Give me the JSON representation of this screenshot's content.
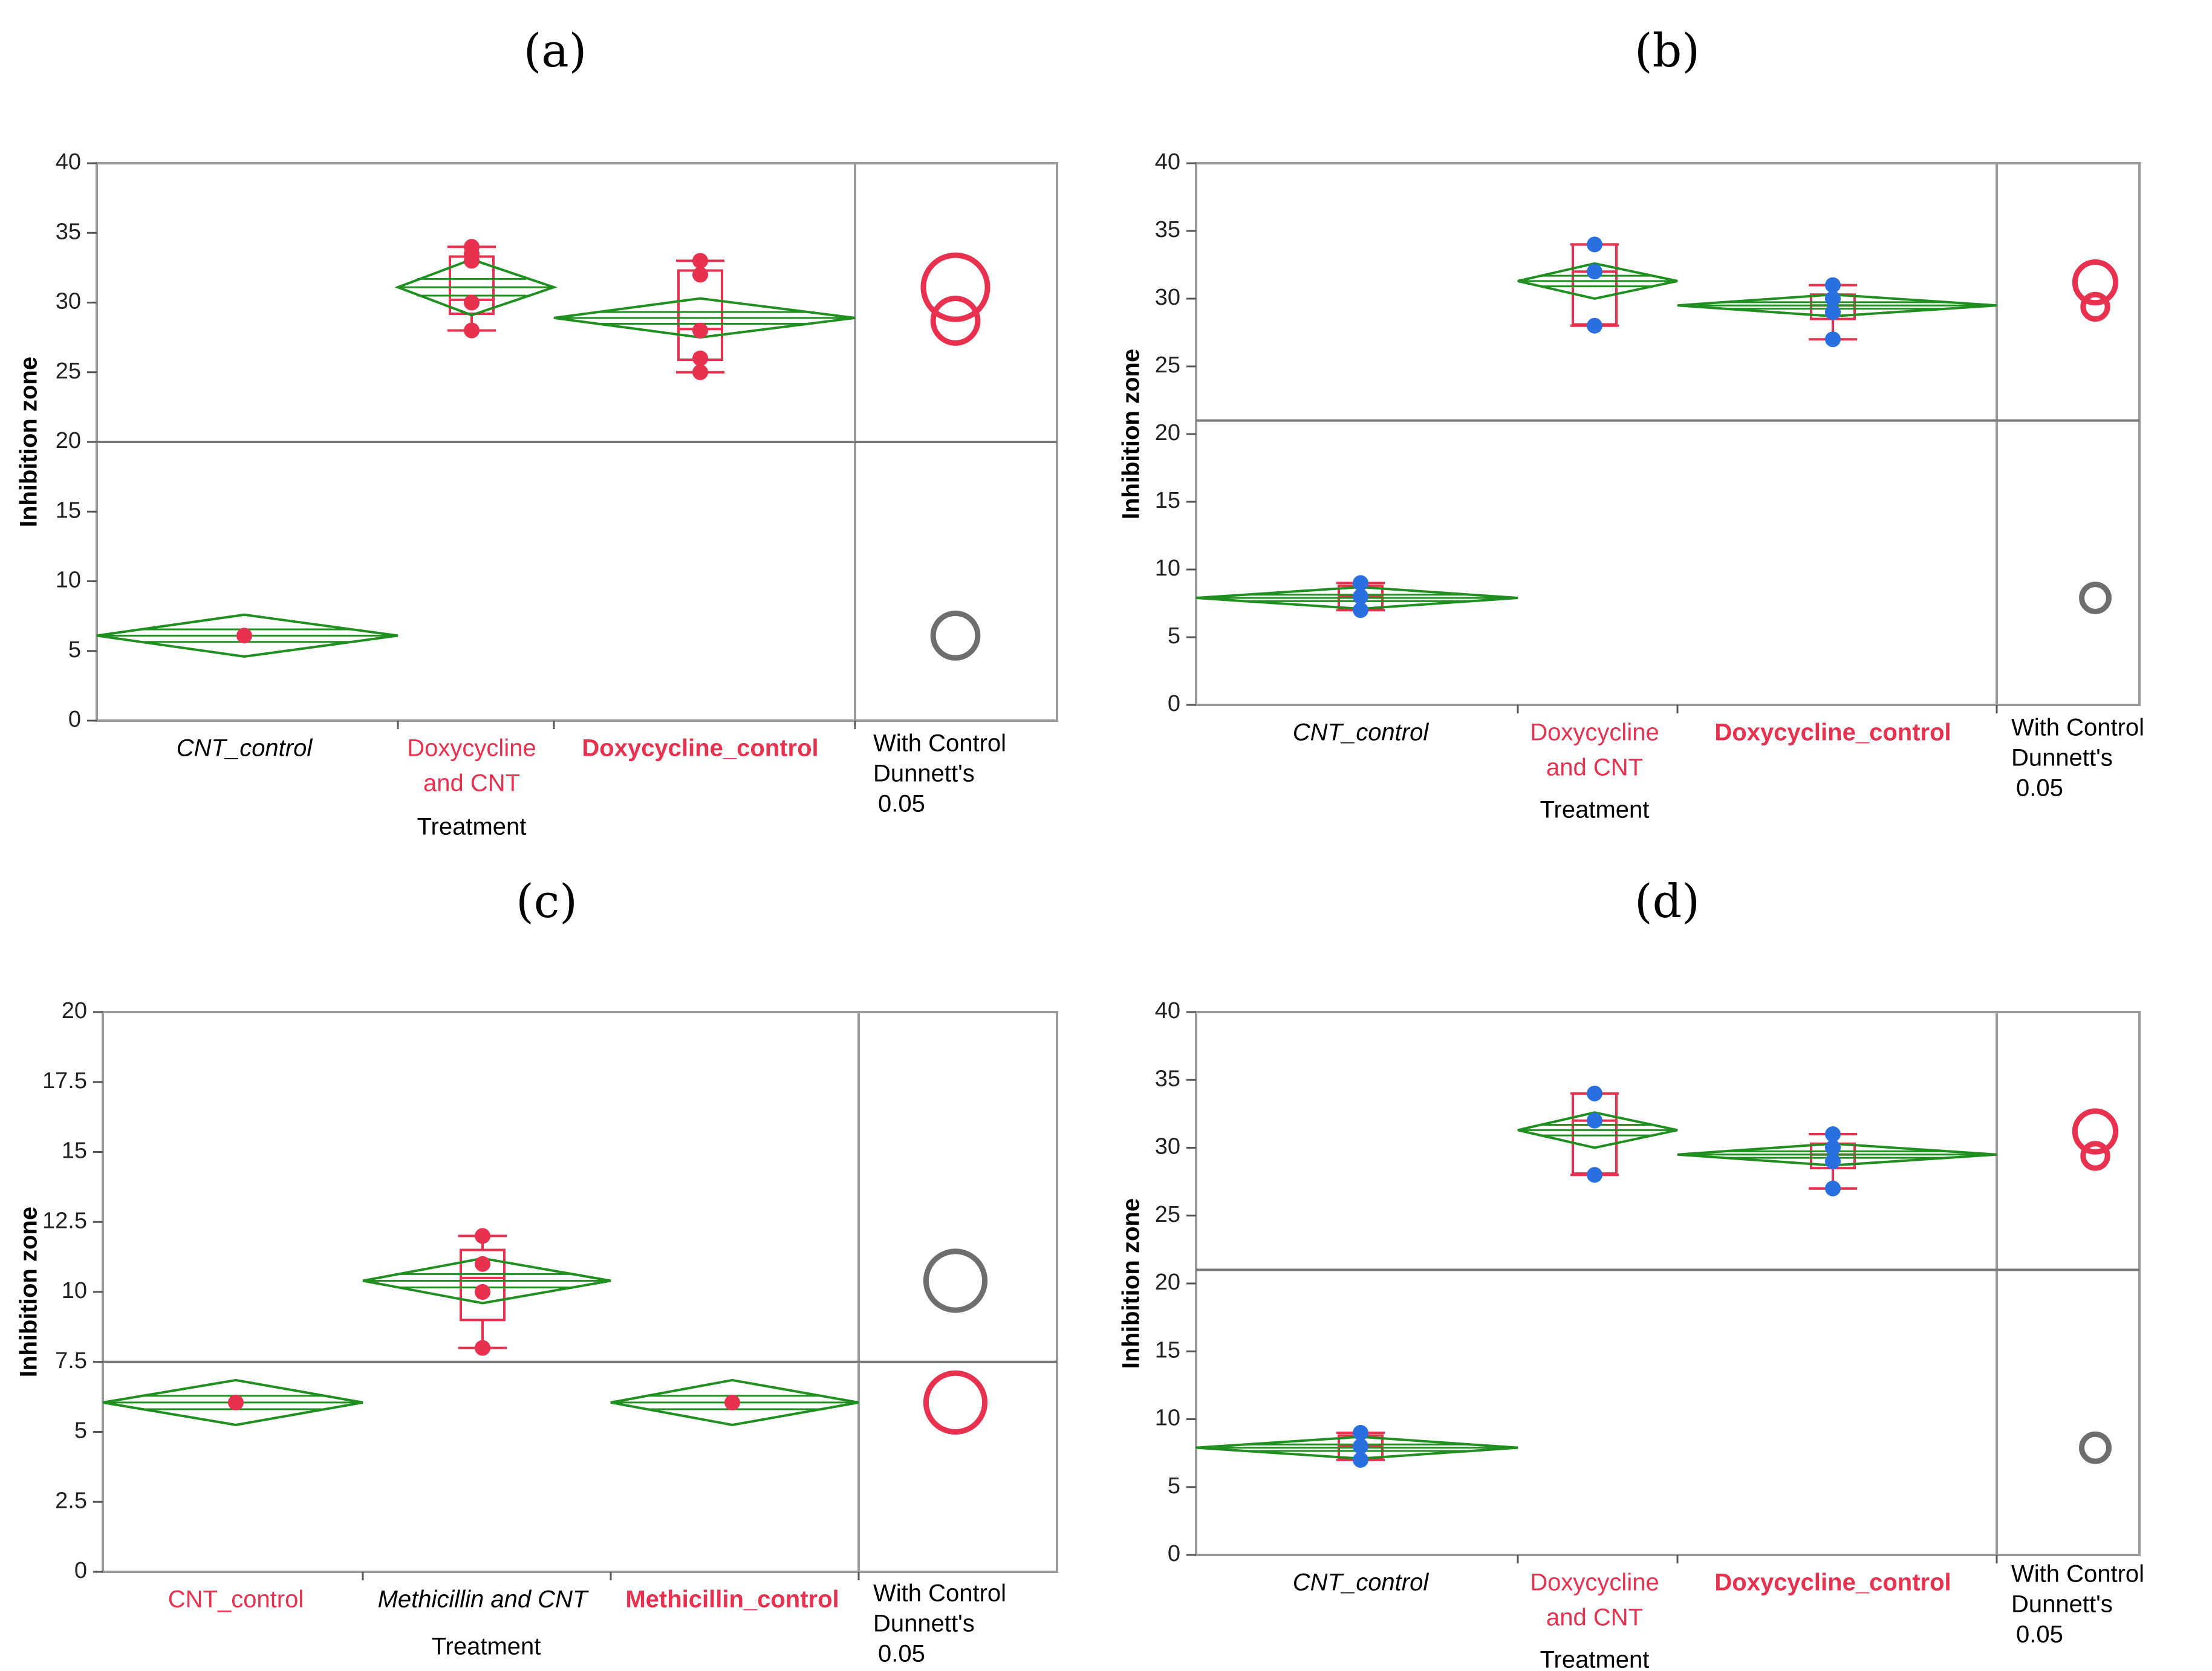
{
  "colors": {
    "diamond": "#1f8f1f",
    "box": "#e8304f",
    "point_red": "#e8304f",
    "point_blue": "#2a6fe0",
    "circle_red": "#e8304f",
    "circle_gray": "#6e6e6e",
    "frame": "#9a9a9a",
    "ref_line": "#777777"
  },
  "chart_data": [
    {
      "id": "a",
      "panel_label": "(a)",
      "type": "diamond-box-plot",
      "ylabel": "Inhibition zone",
      "xlabel": "Treatment",
      "ylim": [
        0,
        40
      ],
      "yticks": [
        "0",
        "5",
        "10",
        "15",
        "20",
        "25",
        "30",
        "35",
        "40"
      ],
      "reference_line": 20,
      "point_color": "red",
      "categories": [
        {
          "lines": [
            "CNT_control"
          ],
          "style": "italic",
          "color": "black",
          "mean": 6.1,
          "ci": [
            4.6,
            7.6
          ],
          "points": [
            6.1
          ],
          "box": null
        },
        {
          "lines": [
            "Doxycycline",
            "and CNT"
          ],
          "style": "normal",
          "color": "red",
          "mean": 31.1,
          "ci": [
            29.1,
            33.1
          ],
          "points": [
            34,
            33.5,
            33,
            30,
            28
          ],
          "box": {
            "q1": 29.2,
            "median": 30.2,
            "q3": 33.3,
            "min": 28,
            "max": 34
          }
        },
        {
          "lines": [
            "Doxycycline_control"
          ],
          "style": "bold",
          "color": "red",
          "mean": 28.9,
          "ci": [
            27.5,
            30.3
          ],
          "points": [
            33,
            32,
            28,
            26,
            25
          ],
          "box": {
            "q1": 25.9,
            "median": 28.1,
            "q3": 32.3,
            "min": 25,
            "max": 33
          }
        }
      ],
      "comparison": {
        "label_lines": [
          "With Control",
          "Dunnett's",
          "0.05"
        ],
        "circles": [
          {
            "center": 31.1,
            "radius": 2.3,
            "color": "red"
          },
          {
            "center": 28.7,
            "radius": 1.6,
            "color": "red"
          },
          {
            "center": 6.1,
            "radius": 1.6,
            "color": "gray"
          }
        ]
      }
    },
    {
      "id": "b",
      "panel_label": "(b)",
      "type": "diamond-box-plot",
      "ylabel": "Inhibition zone",
      "xlabel": "Treatment",
      "ylim": [
        0,
        40
      ],
      "yticks": [
        "0",
        "5",
        "10",
        "15",
        "20",
        "25",
        "30",
        "35",
        "40"
      ],
      "reference_line": 21,
      "point_color": "blue",
      "categories": [
        {
          "lines": [
            "CNT_control"
          ],
          "style": "italic",
          "color": "black",
          "mean": 7.9,
          "ci": [
            7.1,
            8.7
          ],
          "points": [
            9,
            8,
            7
          ],
          "box": {
            "q1": 7.1,
            "median": 8,
            "q3": 8.8,
            "min": 7,
            "max": 9
          }
        },
        {
          "lines": [
            "Doxycycline",
            "and CNT"
          ],
          "style": "normal",
          "color": "red",
          "mean": 31.3,
          "ci": [
            30,
            32.6
          ],
          "points": [
            34,
            32,
            28
          ],
          "box": {
            "q1": 28.1,
            "median": 32,
            "q3": 34,
            "min": 28,
            "max": 34
          }
        },
        {
          "lines": [
            "Doxycycline_control"
          ],
          "style": "bold",
          "color": "red",
          "mean": 29.5,
          "ci": [
            28.7,
            30.3
          ],
          "points": [
            31,
            30,
            29,
            27
          ],
          "box": {
            "q1": 28.5,
            "median": 29.5,
            "q3": 30.3,
            "min": 27,
            "max": 31
          }
        }
      ],
      "comparison": {
        "label_lines": [
          "With Control",
          "Dunnett's",
          "0.05"
        ],
        "circles": [
          {
            "center": 31.2,
            "radius": 1.5,
            "color": "red"
          },
          {
            "center": 29.4,
            "radius": 0.9,
            "color": "red"
          },
          {
            "center": 7.9,
            "radius": 1.0,
            "color": "gray"
          }
        ]
      }
    },
    {
      "id": "c",
      "panel_label": "(c)",
      "type": "diamond-box-plot",
      "ylabel": "Inhibition zone",
      "xlabel": "Treatment",
      "ylim": [
        0,
        20
      ],
      "yticks": [
        "0",
        "2.5",
        "5",
        "7.5",
        "10",
        "12.5",
        "15",
        "17.5",
        "20"
      ],
      "reference_line": 7.5,
      "point_color": "red",
      "categories": [
        {
          "lines": [
            "CNT_control"
          ],
          "style": "normal",
          "color": "red",
          "mean": 6.05,
          "ci": [
            5.25,
            6.85
          ],
          "points": [
            6.05
          ],
          "box": null
        },
        {
          "lines": [
            "Methicillin and CNT"
          ],
          "style": "italic",
          "color": "black",
          "mean": 10.4,
          "ci": [
            9.6,
            11.2
          ],
          "points": [
            12,
            11,
            10,
            8
          ],
          "box": {
            "q1": 9,
            "median": 10.5,
            "q3": 11.5,
            "min": 8,
            "max": 12
          }
        },
        {
          "lines": [
            "Methicillin_control"
          ],
          "style": "bold",
          "color": "red",
          "mean": 6.05,
          "ci": [
            5.25,
            6.85
          ],
          "points": [
            6.05
          ],
          "box": null
        }
      ],
      "comparison": {
        "label_lines": [
          "With Control",
          "Dunnett's",
          "0.05"
        ],
        "circles": [
          {
            "center": 10.4,
            "radius": 1.05,
            "color": "gray"
          },
          {
            "center": 6.05,
            "radius": 1.05,
            "color": "red"
          }
        ]
      }
    },
    {
      "id": "d",
      "panel_label": "(d)",
      "type": "diamond-box-plot",
      "ylabel": "Inhibition zone",
      "xlabel": "Treatment",
      "ylim": [
        0,
        40
      ],
      "yticks": [
        "0",
        "5",
        "10",
        "15",
        "20",
        "25",
        "30",
        "35",
        "40"
      ],
      "reference_line": 21,
      "point_color": "blue",
      "categories": [
        {
          "lines": [
            "CNT_control"
          ],
          "style": "italic",
          "color": "black",
          "mean": 7.9,
          "ci": [
            7.1,
            8.7
          ],
          "points": [
            9,
            8,
            7
          ],
          "box": {
            "q1": 7.1,
            "median": 8,
            "q3": 8.8,
            "min": 7,
            "max": 9
          }
        },
        {
          "lines": [
            "Doxycycline",
            "and CNT"
          ],
          "style": "normal",
          "color": "red",
          "mean": 31.3,
          "ci": [
            30,
            32.6
          ],
          "points": [
            34,
            32,
            28
          ],
          "box": {
            "q1": 28.1,
            "median": 32,
            "q3": 34,
            "min": 28,
            "max": 34
          }
        },
        {
          "lines": [
            "Doxycycline_control"
          ],
          "style": "bold",
          "color": "red",
          "mean": 29.5,
          "ci": [
            28.7,
            30.3
          ],
          "points": [
            31,
            30,
            29,
            27
          ],
          "box": {
            "q1": 28.5,
            "median": 29.5,
            "q3": 30.3,
            "min": 27,
            "max": 31
          }
        }
      ],
      "comparison": {
        "label_lines": [
          "With Control",
          "Dunnett's",
          "0.05"
        ],
        "circles": [
          {
            "center": 31.2,
            "radius": 1.5,
            "color": "red"
          },
          {
            "center": 29.4,
            "radius": 0.9,
            "color": "red"
          },
          {
            "center": 7.9,
            "radius": 1.0,
            "color": "gray"
          }
        ]
      }
    }
  ]
}
